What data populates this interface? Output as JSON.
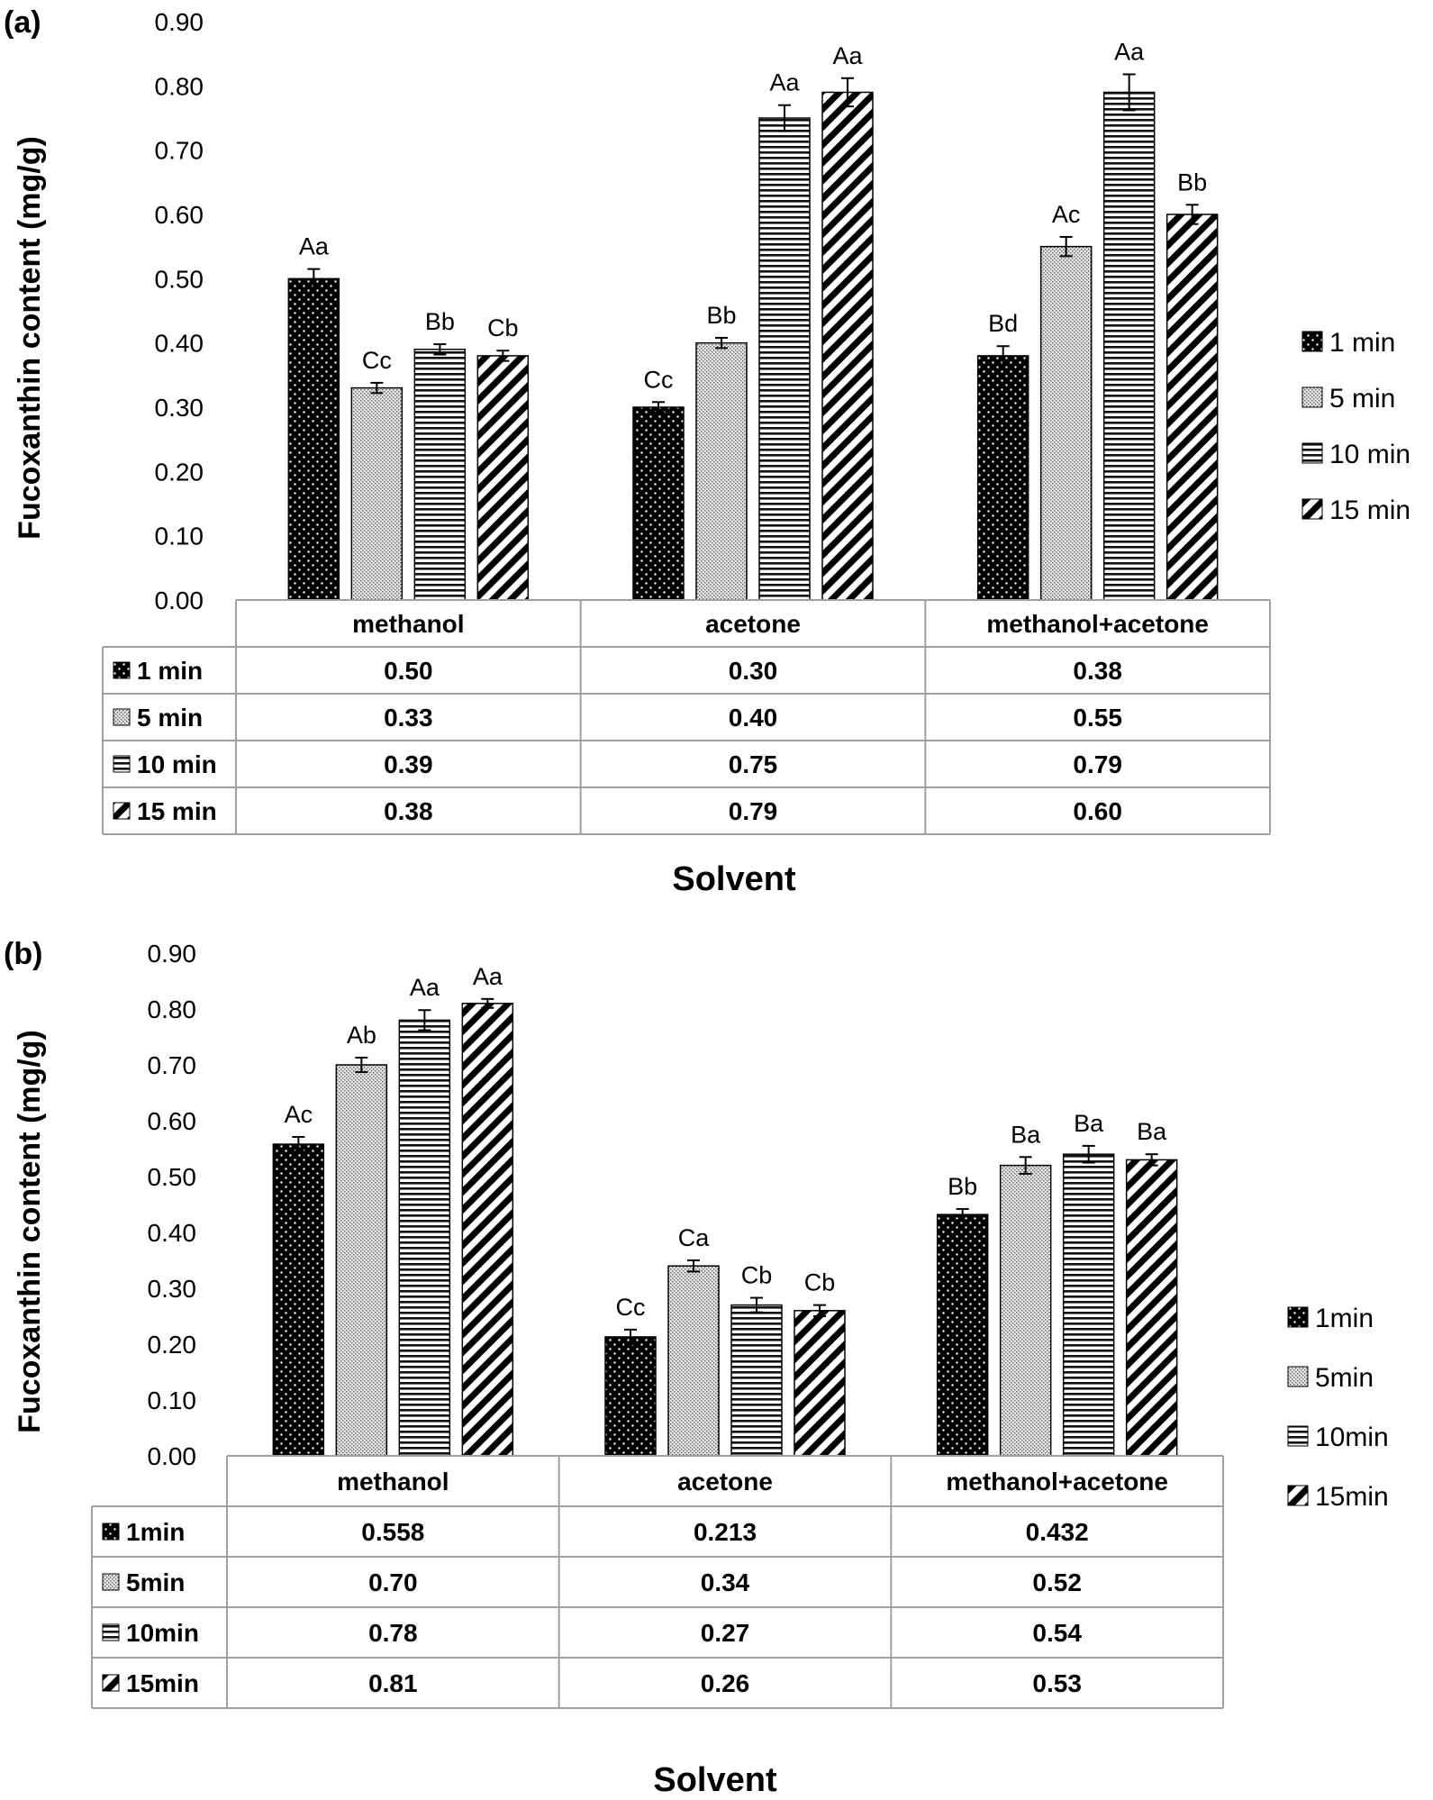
{
  "chart_data": [
    {
      "type": "bar",
      "panel_label": "(a)",
      "ylabel": "Fucoxanthin content (mg/g)",
      "xlabel": "Solvent",
      "ylim": [
        0,
        0.9
      ],
      "yticks": [
        "0.00",
        "0.10",
        "0.20",
        "0.30",
        "0.40",
        "0.50",
        "0.60",
        "0.70",
        "0.80",
        "0.90"
      ],
      "grid": false,
      "legend_placement": "right",
      "categories": [
        "methanol",
        "acetone",
        "methanol+acetone"
      ],
      "series": [
        {
          "name": "1 min",
          "pattern": "dots",
          "values": [
            0.5,
            0.3,
            0.38
          ],
          "table_values": [
            "0.50",
            "0.30",
            "0.38"
          ],
          "errors": [
            0.015,
            0.008,
            0.015
          ],
          "letters": [
            "Aa",
            "Cc",
            "Bd"
          ]
        },
        {
          "name": "5 min",
          "pattern": "stipple",
          "values": [
            0.33,
            0.4,
            0.55
          ],
          "table_values": [
            "0.33",
            "0.40",
            "0.55"
          ],
          "errors": [
            0.008,
            0.008,
            0.015
          ],
          "letters": [
            "Cc",
            "Bb",
            "Ac"
          ]
        },
        {
          "name": "10 min",
          "pattern": "hlines",
          "values": [
            0.39,
            0.75,
            0.79
          ],
          "table_values": [
            "0.39",
            "0.75",
            "0.79"
          ],
          "errors": [
            0.008,
            0.02,
            0.028
          ],
          "letters": [
            "Bb",
            "Aa",
            "Aa"
          ]
        },
        {
          "name": "15 min",
          "pattern": "diagonal",
          "values": [
            0.38,
            0.79,
            0.6
          ],
          "table_values": [
            "0.38",
            "0.79",
            "0.60"
          ],
          "errors": [
            0.008,
            0.022,
            0.015
          ],
          "letters": [
            "Cb",
            "Aa",
            "Bb"
          ]
        }
      ]
    },
    {
      "type": "bar",
      "panel_label": "(b)",
      "ylabel": "Fucoxanthin content (mg/g)",
      "xlabel": "Solvent",
      "ylim": [
        0,
        0.9
      ],
      "yticks": [
        "0.00",
        "0.10",
        "0.20",
        "0.30",
        "0.40",
        "0.50",
        "0.60",
        "0.70",
        "0.80",
        "0.90"
      ],
      "grid": false,
      "legend_placement": "right",
      "categories": [
        "methanol",
        "acetone",
        "methanol+acetone"
      ],
      "series": [
        {
          "name": "1min",
          "pattern": "dots",
          "values": [
            0.558,
            0.213,
            0.432
          ],
          "table_values": [
            "0.558",
            "0.213",
            "0.432"
          ],
          "errors": [
            0.013,
            0.013,
            0.01
          ],
          "letters": [
            "Ac",
            "Cc",
            "Bb"
          ]
        },
        {
          "name": "5min",
          "pattern": "stipple",
          "values": [
            0.7,
            0.34,
            0.52
          ],
          "table_values": [
            "0.70",
            "0.34",
            "0.52"
          ],
          "errors": [
            0.013,
            0.01,
            0.015
          ],
          "letters": [
            "Ab",
            "Ca",
            "Ba"
          ]
        },
        {
          "name": "10min",
          "pattern": "hlines",
          "values": [
            0.78,
            0.27,
            0.54
          ],
          "table_values": [
            "0.78",
            "0.27",
            "0.54"
          ],
          "errors": [
            0.018,
            0.013,
            0.015
          ],
          "letters": [
            "Aa",
            "Cb",
            "Ba"
          ]
        },
        {
          "name": "15min",
          "pattern": "diagonal",
          "values": [
            0.81,
            0.26,
            0.53
          ],
          "table_values": [
            "0.81",
            "0.26",
            "0.53"
          ],
          "errors": [
            0.008,
            0.01,
            0.01
          ],
          "letters": [
            "Aa",
            "Cb",
            "Ba"
          ]
        }
      ]
    }
  ]
}
